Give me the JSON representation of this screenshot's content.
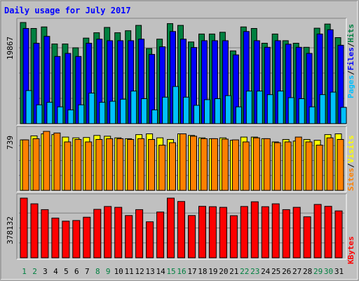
{
  "chart_data": {
    "type": "bar",
    "title": "Daily usage for July 2017",
    "days": [
      "1",
      "2",
      "3",
      "4",
      "5",
      "6",
      "7",
      "8",
      "9",
      "10",
      "11",
      "12",
      "13",
      "14",
      "15",
      "16",
      "17",
      "18",
      "19",
      "20",
      "21",
      "22",
      "23",
      "24",
      "25",
      "26",
      "27",
      "28",
      "29",
      "30",
      "31"
    ],
    "weekend_days": [
      "1",
      "2",
      "8",
      "9",
      "15",
      "16",
      "22",
      "23",
      "29",
      "30"
    ],
    "panels": {
      "hits_files_pages": {
        "max_label": "19867",
        "ymax": 19867,
        "legend": [
          "Pages",
          "/",
          "Files",
          "/",
          "Hits"
        ],
        "series": [
          {
            "name": "Hits",
            "color": "#008040",
            "values": [
              19867,
              18700,
              19000,
              15650,
              15650,
              14900,
              16800,
              17850,
              18900,
              17850,
              18250,
              19300,
              14750,
              16600,
              19650,
              19300,
              16050,
              17600,
              17600,
              17950,
              14300,
              19000,
              18700,
              15800,
              17600,
              16300,
              15800,
              15000,
              18750,
              19567,
              16900
            ]
          },
          {
            "name": "Files",
            "color": "#0000ff",
            "values": [
              18700,
              15800,
              17150,
              13200,
              13800,
              13200,
              15800,
              16600,
              16300,
              16300,
              16300,
              16600,
              13600,
              15100,
              18100,
              16600,
              14950,
              16300,
              16300,
              16300,
              13500,
              18100,
              16300,
              15000,
              16300,
              15600,
              15000,
              13800,
              17600,
              18450,
              15400
            ]
          },
          {
            "name": "Pages",
            "color": "#00c0ff",
            "values": [
              6500,
              3700,
              4200,
              3300,
              2700,
              3700,
              6000,
              4200,
              4400,
              4800,
              6400,
              4900,
              2700,
              5200,
              7300,
              5200,
              3600,
              4700,
              4900,
              5500,
              3300,
              6400,
              6400,
              5700,
              6400,
              5100,
              4900,
              3300,
              5700,
              6200,
              3200
            ]
          }
        ]
      },
      "visits_sites": {
        "max_label": "739",
        "ymax": 739,
        "legend": [
          "Sites",
          "/",
          "Visits"
        ],
        "series": [
          {
            "name": "Visits",
            "color": "#ffff00",
            "values": [
              625,
              675,
              700,
              690,
              660,
              650,
              655,
              680,
              670,
              650,
              640,
              690,
              700,
              650,
              630,
              700,
              680,
              650,
              640,
              650,
              620,
              660,
              660,
              640,
              600,
              630,
              610,
              630,
              620,
              690,
              700
            ]
          },
          {
            "name": "Sites",
            "color": "#ff8000",
            "values": [
              625,
              640,
              730,
              710,
              600,
              630,
              600,
              630,
              640,
              640,
              630,
              640,
              630,
              560,
              590,
              700,
              670,
              640,
              640,
              635,
              625,
              600,
              650,
              640,
              590,
              600,
              660,
              600,
              560,
              650,
              630
            ]
          }
        ]
      },
      "kbytes": {
        "max_label": "378132",
        "ymax": 378132,
        "legend": [
          "KBytes"
        ],
        "series": [
          {
            "name": "KBytes",
            "color": "#ff0000",
            "values": [
              378132,
              342000,
              305000,
              252000,
              232000,
              236000,
              257000,
              307000,
              325000,
              320000,
              268000,
              305000,
              228000,
              290000,
              378132,
              357000,
              268000,
              326000,
              324000,
              320000,
              267000,
              325000,
              355000,
              324000,
              342000,
              305000,
              320000,
              260000,
              338000,
              326000,
              297000
            ]
          }
        ]
      }
    }
  }
}
